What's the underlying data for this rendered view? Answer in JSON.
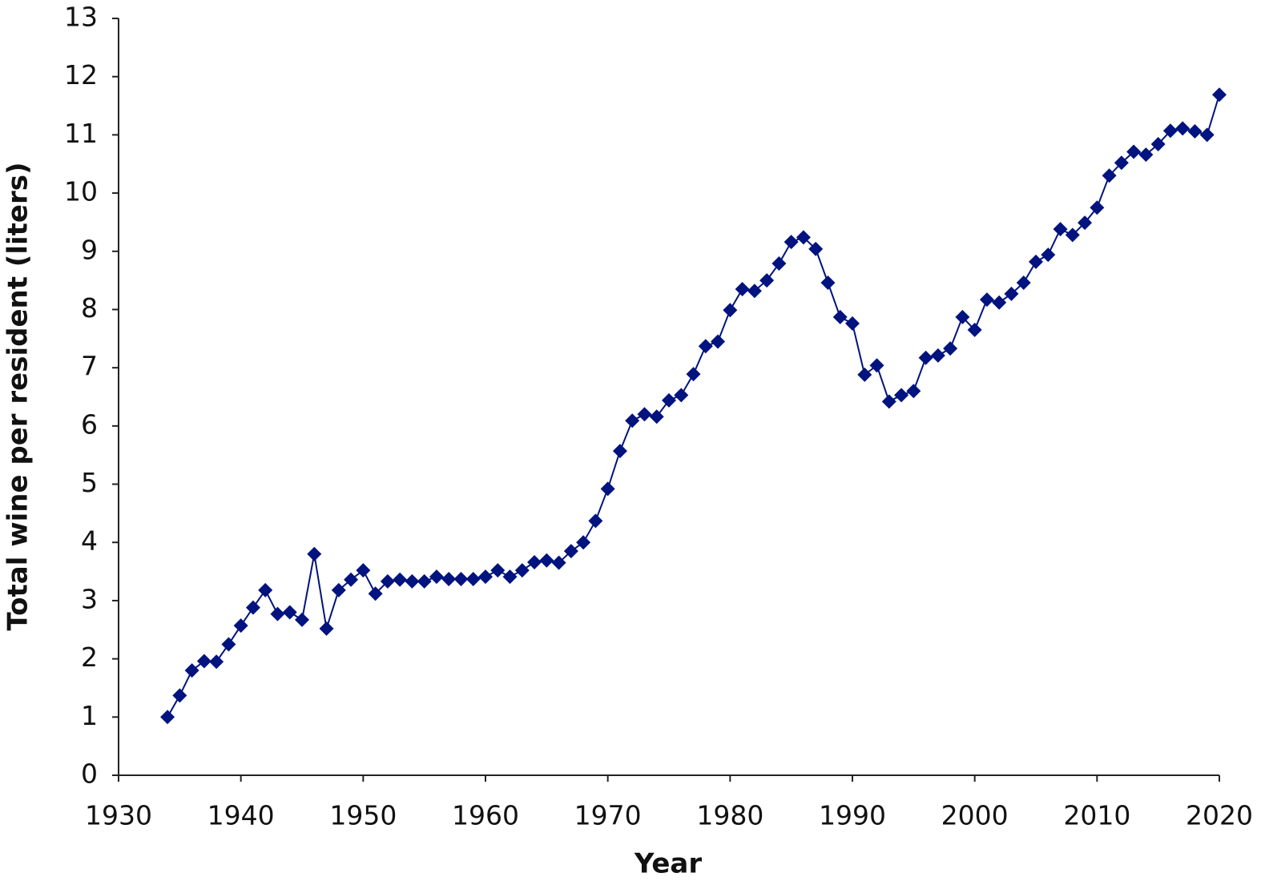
{
  "chart_data": {
    "type": "line",
    "x_label": "Year",
    "y_label": "Total wine per resident (liters)",
    "xlim": [
      1930,
      2020
    ],
    "xticks": [
      1930,
      1940,
      1950,
      1960,
      1970,
      1980,
      1990,
      2000,
      2010,
      2020
    ],
    "ylim": [
      0,
      13
    ],
    "yticks": [
      0,
      1,
      2,
      3,
      4,
      5,
      6,
      7,
      8,
      9,
      10,
      11,
      12,
      13
    ],
    "x": [
      1934,
      1935,
      1936,
      1937,
      1938,
      1939,
      1940,
      1941,
      1942,
      1943,
      1944,
      1945,
      1946,
      1947,
      1948,
      1949,
      1950,
      1951,
      1952,
      1953,
      1954,
      1955,
      1956,
      1957,
      1958,
      1959,
      1960,
      1961,
      1962,
      1963,
      1964,
      1965,
      1966,
      1967,
      1968,
      1969,
      1970,
      1971,
      1972,
      1973,
      1974,
      1975,
      1976,
      1977,
      1978,
      1979,
      1980,
      1981,
      1982,
      1983,
      1984,
      1985,
      1986,
      1987,
      1988,
      1989,
      1990,
      1991,
      1992,
      1993,
      1994,
      1995,
      1996,
      1997,
      1998,
      1999,
      2000,
      2001,
      2002,
      2003,
      2004,
      2005,
      2006,
      2007,
      2008,
      2009,
      2010,
      2011,
      2012,
      2013,
      2014,
      2015,
      2016,
      2017,
      2018,
      2019,
      2020
    ],
    "series": [
      {
        "color": "#00137f",
        "marker": "diamond",
        "values": [
          1.0,
          1.37,
          1.8,
          1.96,
          1.95,
          2.25,
          2.57,
          2.88,
          3.18,
          2.77,
          2.8,
          2.67,
          3.8,
          2.52,
          3.18,
          3.36,
          3.52,
          3.12,
          3.33,
          3.36,
          3.33,
          3.33,
          3.41,
          3.37,
          3.37,
          3.37,
          3.41,
          3.52,
          3.41,
          3.52,
          3.66,
          3.69,
          3.65,
          3.85,
          4.0,
          4.37,
          4.92,
          5.57,
          6.09,
          6.2,
          6.16,
          6.44,
          6.53,
          6.89,
          7.37,
          7.45,
          7.99,
          8.35,
          8.32,
          8.5,
          8.79,
          9.16,
          9.24,
          9.04,
          8.46,
          7.87,
          7.76,
          6.88,
          7.04,
          6.42,
          6.53,
          6.6,
          7.17,
          7.21,
          7.33,
          7.87,
          7.65,
          8.17,
          8.12,
          8.27,
          8.46,
          8.82,
          8.94,
          9.38,
          9.28,
          9.49,
          9.75,
          10.3,
          10.52,
          10.71,
          10.66,
          10.84,
          11.07,
          11.11,
          11.06,
          11.0,
          11.69
        ]
      }
    ]
  }
}
